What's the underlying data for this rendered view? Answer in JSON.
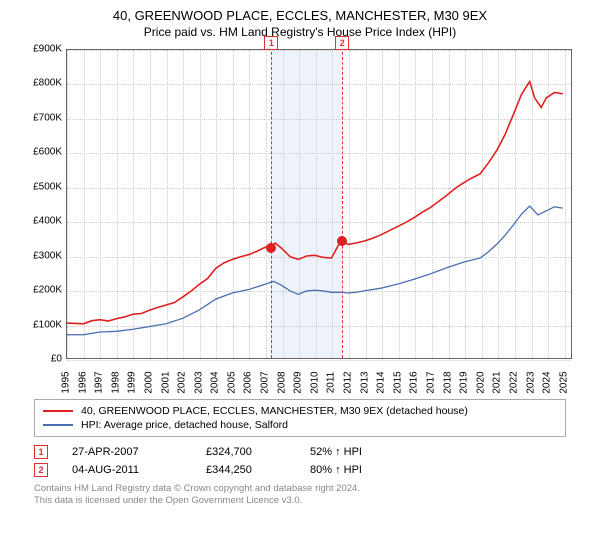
{
  "title": "40, GREENWOOD PLACE, ECCLES, MANCHESTER, M30 9EX",
  "subtitle": "Price paid vs. HM Land Registry's House Price Index (HPI)",
  "chart": {
    "type": "line",
    "background_color": "#ffffff",
    "grid_color": "#cccccc",
    "border_color": "#666666",
    "x": {
      "min": 1995,
      "max": 2025.5,
      "ticks": [
        1995,
        1996,
        1997,
        1998,
        1999,
        2000,
        2001,
        2002,
        2003,
        2004,
        2005,
        2006,
        2007,
        2008,
        2009,
        2010,
        2011,
        2012,
        2013,
        2014,
        2015,
        2016,
        2017,
        2018,
        2019,
        2020,
        2021,
        2022,
        2023,
        2024,
        2025
      ],
      "fontsize": 10
    },
    "y": {
      "min": 0,
      "max": 900000,
      "ticks": [
        0,
        100000,
        200000,
        300000,
        400000,
        500000,
        600000,
        700000,
        800000,
        900000
      ],
      "tick_labels": [
        "£0",
        "£100K",
        "£200K",
        "£300K",
        "£400K",
        "£500K",
        "£600K",
        "£700K",
        "£800K",
        "£900K"
      ],
      "fontsize": 10
    },
    "markers": [
      {
        "n": "1",
        "year": 2007.32,
        "price": 324700
      },
      {
        "n": "2",
        "year": 2011.59,
        "price": 344250
      }
    ],
    "marker_band": {
      "from": 2007.32,
      "to": 2011.59,
      "color": "#eef2fb"
    },
    "marker_line_color": "#e03030",
    "series": [
      {
        "name": "subject",
        "label": "40, GREENWOOD PLACE, ECCLES, MANCHESTER, M30 9EX (detached house)",
        "color": "#e02020",
        "line_width": 1.6,
        "dot_color": "#e02020",
        "points": [
          [
            1995,
            102000
          ],
          [
            1996,
            100000
          ],
          [
            1996.5,
            109000
          ],
          [
            1997,
            112000
          ],
          [
            1997.5,
            108000
          ],
          [
            1998,
            115000
          ],
          [
            1998.5,
            120000
          ],
          [
            1999,
            128000
          ],
          [
            1999.5,
            130000
          ],
          [
            2000,
            140000
          ],
          [
            2000.5,
            148000
          ],
          [
            2001,
            155000
          ],
          [
            2001.5,
            162000
          ],
          [
            2002,
            178000
          ],
          [
            2002.5,
            195000
          ],
          [
            2003,
            215000
          ],
          [
            2003.5,
            232000
          ],
          [
            2004,
            262000
          ],
          [
            2004.5,
            278000
          ],
          [
            2005,
            288000
          ],
          [
            2005.5,
            296000
          ],
          [
            2006,
            302000
          ],
          [
            2006.5,
            312000
          ],
          [
            2007,
            324000
          ],
          [
            2007.32,
            324700
          ],
          [
            2007.6,
            336000
          ],
          [
            2008,
            320000
          ],
          [
            2008.5,
            296000
          ],
          [
            2009,
            288000
          ],
          [
            2009.5,
            298000
          ],
          [
            2010,
            300000
          ],
          [
            2010.5,
            294000
          ],
          [
            2011,
            292000
          ],
          [
            2011.59,
            344250
          ],
          [
            2012,
            332000
          ],
          [
            2012.5,
            336000
          ],
          [
            2013,
            342000
          ],
          [
            2013.5,
            350000
          ],
          [
            2014,
            360000
          ],
          [
            2014.5,
            372000
          ],
          [
            2015,
            384000
          ],
          [
            2015.5,
            396000
          ],
          [
            2016,
            410000
          ],
          [
            2016.5,
            426000
          ],
          [
            2017,
            440000
          ],
          [
            2017.5,
            458000
          ],
          [
            2018,
            476000
          ],
          [
            2018.5,
            496000
          ],
          [
            2019,
            512000
          ],
          [
            2019.5,
            526000
          ],
          [
            2020,
            538000
          ],
          [
            2020.5,
            570000
          ],
          [
            2021,
            606000
          ],
          [
            2021.5,
            652000
          ],
          [
            2022,
            710000
          ],
          [
            2022.5,
            770000
          ],
          [
            2023,
            808000
          ],
          [
            2023.3,
            760000
          ],
          [
            2023.7,
            732000
          ],
          [
            2024,
            760000
          ],
          [
            2024.5,
            776000
          ],
          [
            2025,
            772000
          ]
        ]
      },
      {
        "name": "hpi",
        "label": "HPI: Average price, detached house, Salford",
        "color": "#4a6db0",
        "line_width": 1.3,
        "points": [
          [
            1995,
            68000
          ],
          [
            1996,
            68000
          ],
          [
            1997,
            76000
          ],
          [
            1998,
            78000
          ],
          [
            1999,
            84000
          ],
          [
            2000,
            92000
          ],
          [
            2001,
            100000
          ],
          [
            2002,
            116000
          ],
          [
            2003,
            140000
          ],
          [
            2004,
            172000
          ],
          [
            2005,
            190000
          ],
          [
            2006,
            200000
          ],
          [
            2007,
            216000
          ],
          [
            2007.5,
            224000
          ],
          [
            2008,
            212000
          ],
          [
            2008.5,
            196000
          ],
          [
            2009,
            186000
          ],
          [
            2009.5,
            196000
          ],
          [
            2010,
            198000
          ],
          [
            2010.5,
            196000
          ],
          [
            2011,
            192000
          ],
          [
            2011.59,
            192000
          ],
          [
            2012,
            190000
          ],
          [
            2012.5,
            192000
          ],
          [
            2013,
            196000
          ],
          [
            2014,
            204000
          ],
          [
            2015,
            216000
          ],
          [
            2016,
            230000
          ],
          [
            2017,
            246000
          ],
          [
            2018,
            264000
          ],
          [
            2019,
            280000
          ],
          [
            2020,
            292000
          ],
          [
            2020.5,
            310000
          ],
          [
            2021,
            332000
          ],
          [
            2021.5,
            358000
          ],
          [
            2022,
            388000
          ],
          [
            2022.5,
            420000
          ],
          [
            2023,
            444000
          ],
          [
            2023.5,
            418000
          ],
          [
            2024,
            430000
          ],
          [
            2024.5,
            442000
          ],
          [
            2025,
            438000
          ]
        ]
      }
    ]
  },
  "legend": {
    "items": [
      {
        "color": "#e02020",
        "label": "40, GREENWOOD PLACE, ECCLES, MANCHESTER, M30 9EX (detached house)"
      },
      {
        "color": "#4a6db0",
        "label": "HPI: Average price, detached house, Salford"
      }
    ]
  },
  "transactions": [
    {
      "n": "1",
      "date": "27-APR-2007",
      "price": "£324,700",
      "delta": "52% ↑ HPI"
    },
    {
      "n": "2",
      "date": "04-AUG-2011",
      "price": "£344,250",
      "delta": "80% ↑ HPI"
    }
  ],
  "footnote_line1": "Contains HM Land Registry data © Crown copyright and database right 2024.",
  "footnote_line2": "This data is licensed under the Open Government Licence v3.0."
}
